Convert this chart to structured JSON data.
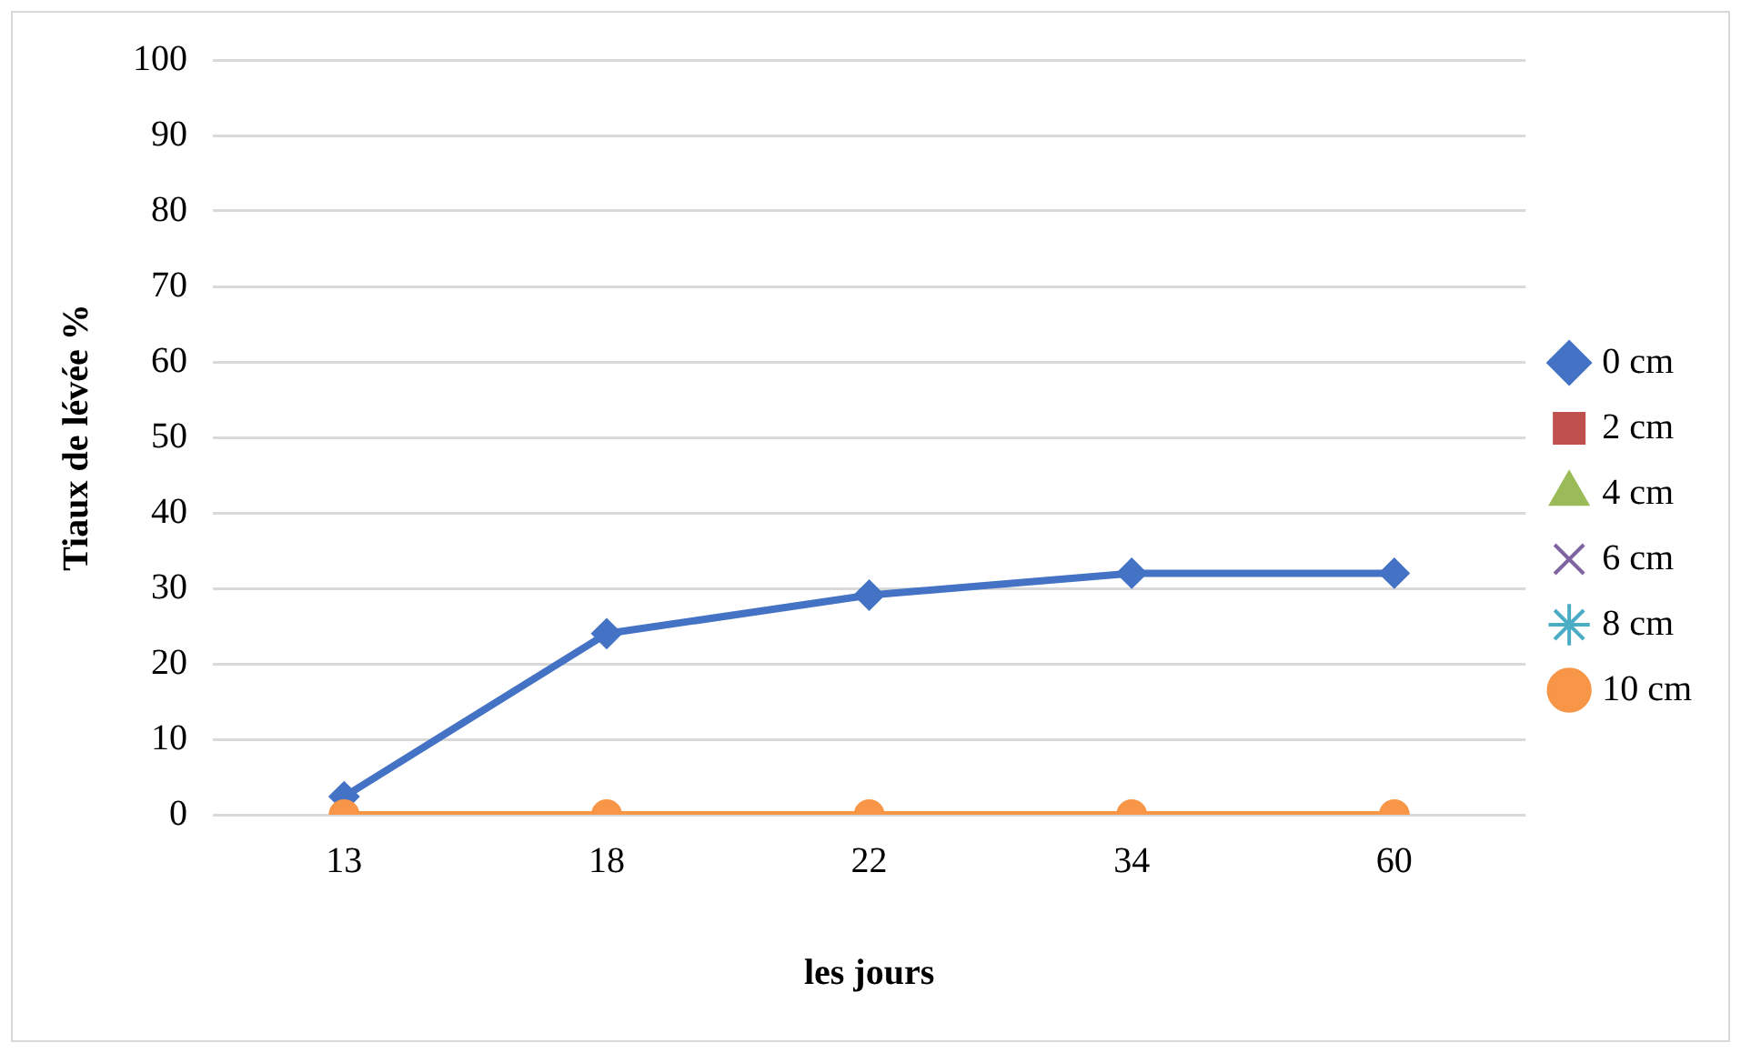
{
  "chart_data": {
    "type": "line",
    "xlabel": "les jours",
    "ylabel": "Tiaux de lévée %",
    "categories": [
      "13",
      "18",
      "22",
      "34",
      "60"
    ],
    "ylim": [
      0,
      100
    ],
    "yticks": [
      0,
      10,
      20,
      30,
      40,
      50,
      60,
      70,
      80,
      90,
      100
    ],
    "grid": "y",
    "legend": "right",
    "line_style": "solid",
    "series": [
      {
        "name": "0 cm",
        "color": "#4472c4",
        "marker": "diamond",
        "values": [
          2.4,
          24,
          29.1,
          32,
          32
        ]
      },
      {
        "name": "2 cm",
        "color": "#c0504d",
        "marker": "square",
        "values": [
          null,
          null,
          null,
          null,
          null
        ]
      },
      {
        "name": "4 cm",
        "color": "#9bbb59",
        "marker": "triangle",
        "values": [
          null,
          null,
          null,
          null,
          null
        ]
      },
      {
        "name": "6 cm",
        "color": "#8064a2",
        "marker": "cross",
        "values": [
          null,
          null,
          null,
          null,
          null
        ]
      },
      {
        "name": "8 cm",
        "color": "#4bacc6",
        "marker": "star",
        "values": [
          null,
          null,
          null,
          null,
          null
        ]
      },
      {
        "name": "10 cm",
        "color": "#f79646",
        "marker": "circle",
        "values": [
          0,
          0,
          0,
          0,
          0
        ]
      }
    ]
  }
}
